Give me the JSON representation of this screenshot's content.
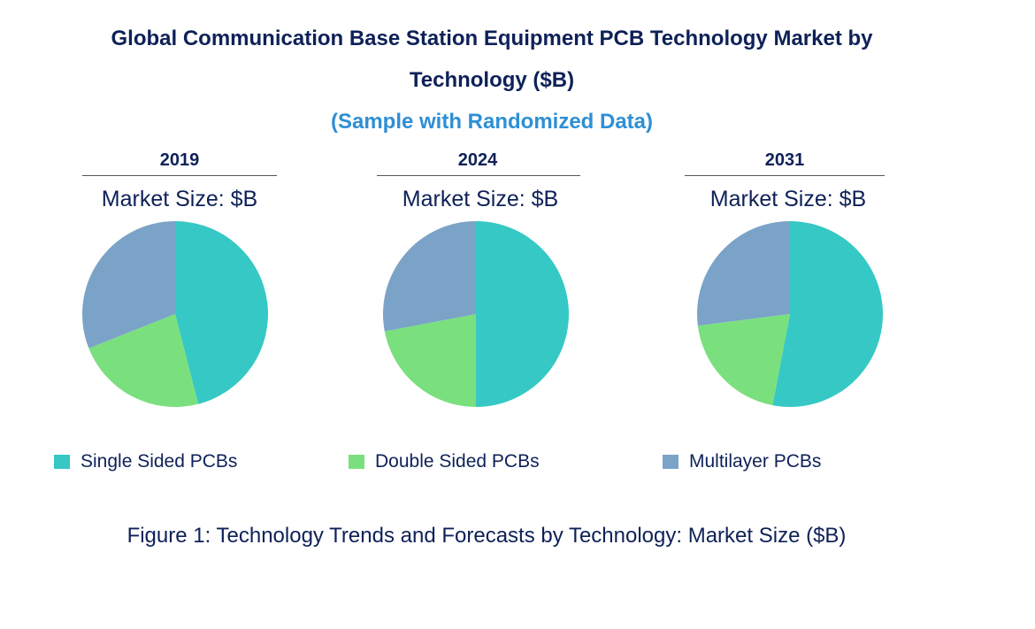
{
  "chart_data": {
    "type": "pie",
    "title_line1": "Global Communication Base Station Equipment PCB Technology Market by",
    "title_line2": "Technology ($B)",
    "subtitle": "(Sample with Randomized Data)",
    "categories": [
      "Single Sided PCBs",
      "Double Sided PCBs",
      "Multilayer PCBs"
    ],
    "colors": [
      "#36C8C4",
      "#7AE07E",
      "#7BA3C8"
    ],
    "pies": [
      {
        "year": "2019",
        "label": "Market Size: $B",
        "values": [
          46,
          23,
          31
        ]
      },
      {
        "year": "2024",
        "label": "Market Size: $B",
        "values": [
          50,
          22,
          28
        ]
      },
      {
        "year": "2031",
        "label": "Market Size: $B",
        "values": [
          53,
          20,
          27
        ]
      }
    ],
    "legend_position": "bottom",
    "caption": "Figure 1: Technology Trends and Forecasts by Technology: Market Size ($B)"
  }
}
